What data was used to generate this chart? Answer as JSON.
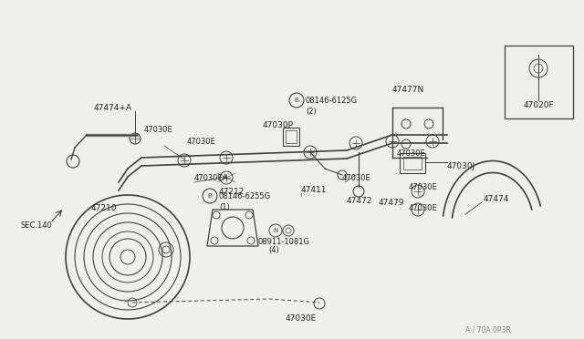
{
  "bg_color": "#f0f0eb",
  "line_color": "#404040",
  "text_color": "#222222",
  "watermark": "A / 70A 0P3R",
  "fig_w": 6.4,
  "fig_h": 3.72,
  "dpi": 100,
  "xlim": [
    0,
    640
  ],
  "ylim": [
    0,
    372
  ]
}
